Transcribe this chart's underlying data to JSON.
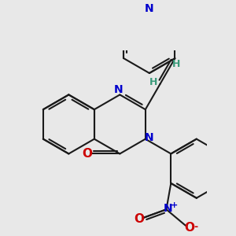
{
  "bg_color": "#e8e8e8",
  "bond_color": "#1a1a1a",
  "nitrogen_color": "#0000cc",
  "oxygen_color": "#cc0000",
  "vinyl_h_color": "#3a9a7a",
  "bond_width": 1.5,
  "fig_w": 3.0,
  "fig_h": 3.0,
  "dpi": 100,
  "xlim": [
    -2.2,
    3.8
  ],
  "ylim": [
    -3.5,
    2.5
  ]
}
